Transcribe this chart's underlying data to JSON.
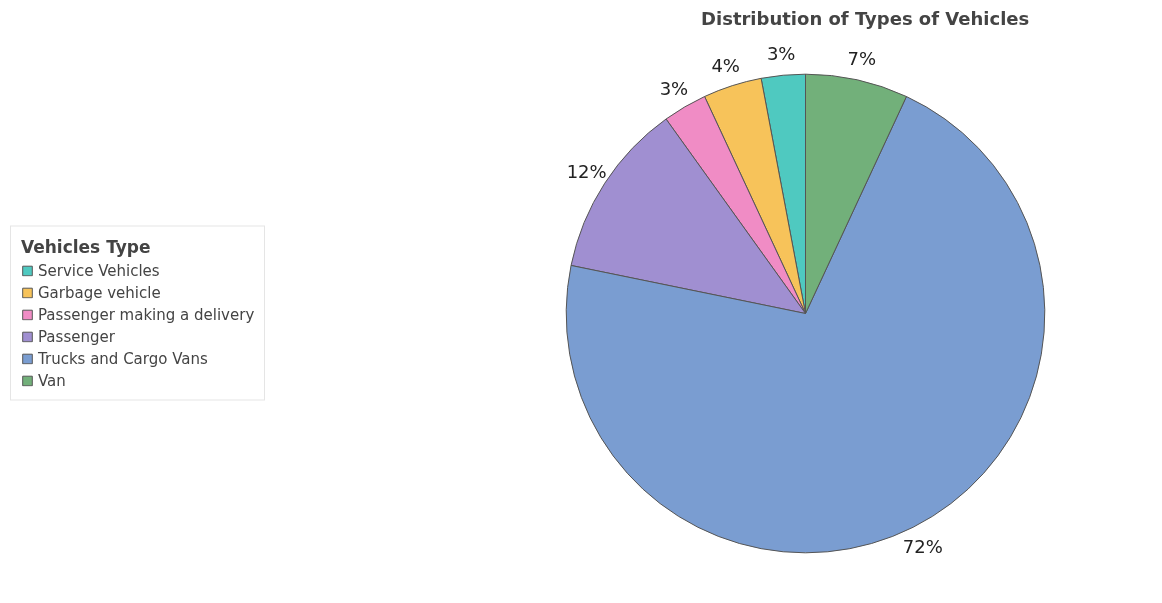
{
  "chart_data": {
    "type": "pie",
    "title": "Distribution of  Types of Vehicles",
    "legend_title": "Vehicles Type",
    "categories": [
      "Service Vehicles",
      "Garbage vehicle",
      "Passenger making a delivery",
      "Passenger",
      "Trucks and Cargo Vans",
      "Van"
    ],
    "values": [
      3,
      4,
      3,
      12,
      72,
      7
    ],
    "colors": [
      "#4fc9c0",
      "#f7c35a",
      "#f08cc5",
      "#a08fd1",
      "#7a9dd1",
      "#72b07a"
    ],
    "value_labels": [
      "3%",
      "4%",
      "3%",
      "12%",
      "72%",
      "7%"
    ],
    "legend": "left"
  }
}
